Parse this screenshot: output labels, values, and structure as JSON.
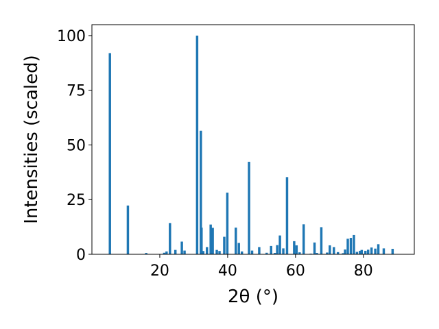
{
  "chart_data": {
    "type": "bar",
    "xlabel": "2θ (°)",
    "ylabel": "Intensities (scaled)",
    "xlim": [
      0,
      95
    ],
    "ylim": [
      0,
      105
    ],
    "xticks": [
      20,
      40,
      60,
      80
    ],
    "yticks": [
      0,
      25,
      50,
      75,
      100
    ],
    "bar_color": "#1f77b4",
    "bar_width": 0.7,
    "x": [
      5.3,
      10.6,
      16.0,
      21.3,
      22.0,
      23.0,
      24.6,
      26.5,
      27.3,
      31.0,
      32.1,
      32.3,
      32.8,
      33.9,
      35.0,
      35.6,
      36.8,
      37.6,
      39.0,
      39.9,
      42.4,
      43.3,
      44.2,
      46.3,
      47.2,
      49.3,
      51.5,
      52.8,
      53.9,
      54.6,
      55.4,
      56.4,
      57.5,
      59.6,
      60.3,
      61.2,
      62.4,
      64.5,
      65.6,
      66.3,
      67.6,
      69.3,
      70.1,
      71.3,
      72.5,
      74.0,
      74.6,
      75.4,
      76.3,
      77.2,
      78.1,
      79.0,
      79.5,
      80.6,
      81.4,
      82.4,
      83.5,
      84.4,
      86.0,
      88.6
    ],
    "values": [
      92,
      22.3,
      0.6,
      0.7,
      1.3,
      14.3,
      2.0,
      5.8,
      1.7,
      100,
      56.5,
      12.2,
      1.5,
      3.3,
      13.6,
      12.1,
      2.0,
      1.5,
      8.0,
      28.2,
      12.2,
      5.2,
      1.3,
      42.3,
      1.7,
      3.3,
      0.7,
      3.8,
      0.6,
      4.2,
      8.6,
      2.7,
      35.3,
      6.0,
      4.1,
      0.9,
      13.7,
      0.3,
      5.4,
      0.6,
      12.4,
      0.8,
      4.1,
      3.3,
      1.0,
      0.5,
      2.2,
      7.1,
      7.5,
      8.8,
      1.1,
      1.6,
      2.0,
      1.6,
      2.1,
      3.1,
      2.6,
      4.6,
      2.7,
      2.5
    ]
  }
}
